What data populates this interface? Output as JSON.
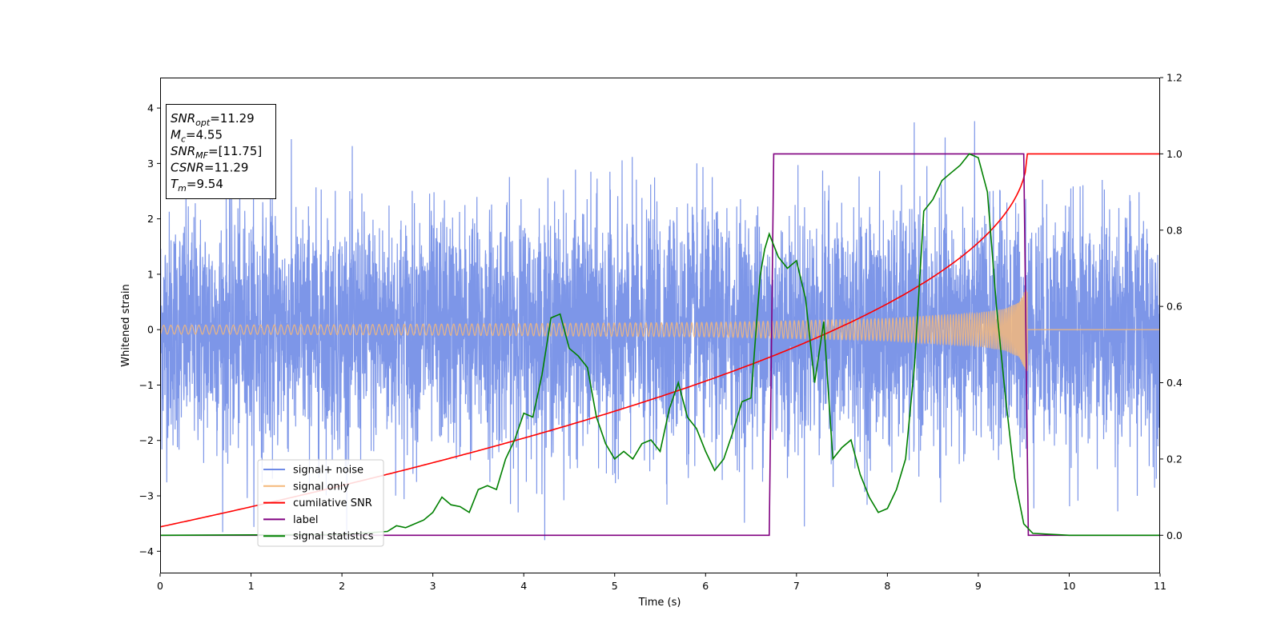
{
  "chart_data": {
    "type": "line",
    "xlabel": "Time (s)",
    "ylabel": "Whitened strain",
    "xlim": [
      0,
      11
    ],
    "ylim": [
      -4.4,
      4.55
    ],
    "y2lim": [
      -0.1,
      1.2
    ],
    "xticks": [
      0,
      1,
      2,
      3,
      4,
      5,
      6,
      7,
      8,
      9,
      10,
      11
    ],
    "yticks": [
      -4,
      -3,
      -2,
      -1,
      0,
      1,
      2,
      3,
      4
    ],
    "y2ticks": [
      "0.0",
      "0.2",
      "0.4",
      "0.6",
      "0.8",
      "1.0",
      "1.2"
    ],
    "grid": false,
    "legend_position": "lower-left",
    "annotation_lines": [
      {
        "base": "SNR",
        "sub": "opt",
        "rest": "=11.29"
      },
      {
        "base": "M",
        "sub": "c",
        "rest": "=4.55"
      },
      {
        "base": "SNR",
        "sub": "MF",
        "rest": "=[11.75]"
      },
      {
        "base": "CSNR",
        "sub": "",
        "rest": "=11.29"
      },
      {
        "base": "T",
        "sub": "m",
        "rest": "=9.54"
      }
    ],
    "series": [
      {
        "name": "signal+ noise",
        "color": "#6f8be6",
        "axis": "left",
        "description_values": {
          "noise_band": [
            -2.0,
            2.0
          ],
          "extreme_range": [
            -3.8,
            4.15
          ]
        }
      },
      {
        "name": "signal only",
        "color": "#f5b97a",
        "axis": "left",
        "envelope": {
          "t": [
            0,
            2,
            4,
            6,
            7,
            8,
            9,
            9.3,
            9.45,
            9.54
          ],
          "amp": [
            0.08,
            0.09,
            0.11,
            0.13,
            0.16,
            0.2,
            0.3,
            0.38,
            0.5,
            0.8
          ]
        },
        "merger_time": 9.54
      },
      {
        "name": "cumilative SNR",
        "color": "#ff0000",
        "axis": "right",
        "t_end": 9.54,
        "final_value": 1.0
      },
      {
        "name": "label",
        "color": "#800080",
        "axis": "right",
        "points": [
          [
            0,
            0
          ],
          [
            6.7,
            0
          ],
          [
            6.75,
            1
          ],
          [
            9.5,
            1
          ],
          [
            9.55,
            0
          ],
          [
            11,
            0
          ]
        ]
      },
      {
        "name": "signal statistics",
        "color": "#008000",
        "axis": "right",
        "points": [
          [
            0,
            0
          ],
          [
            2,
            0.002
          ],
          [
            2.5,
            0.01
          ],
          [
            2.6,
            0.025
          ],
          [
            2.7,
            0.02
          ],
          [
            2.8,
            0.03
          ],
          [
            2.9,
            0.04
          ],
          [
            3.0,
            0.06
          ],
          [
            3.1,
            0.1
          ],
          [
            3.2,
            0.08
          ],
          [
            3.3,
            0.075
          ],
          [
            3.4,
            0.06
          ],
          [
            3.5,
            0.12
          ],
          [
            3.6,
            0.13
          ],
          [
            3.7,
            0.12
          ],
          [
            3.8,
            0.2
          ],
          [
            3.9,
            0.25
          ],
          [
            4.0,
            0.32
          ],
          [
            4.1,
            0.31
          ],
          [
            4.2,
            0.42
          ],
          [
            4.3,
            0.57
          ],
          [
            4.4,
            0.58
          ],
          [
            4.5,
            0.49
          ],
          [
            4.6,
            0.47
          ],
          [
            4.7,
            0.44
          ],
          [
            4.8,
            0.31
          ],
          [
            4.9,
            0.24
          ],
          [
            5.0,
            0.2
          ],
          [
            5.1,
            0.22
          ],
          [
            5.2,
            0.2
          ],
          [
            5.3,
            0.24
          ],
          [
            5.4,
            0.25
          ],
          [
            5.5,
            0.22
          ],
          [
            5.6,
            0.33
          ],
          [
            5.7,
            0.4
          ],
          [
            5.8,
            0.31
          ],
          [
            5.9,
            0.28
          ],
          [
            6.0,
            0.22
          ],
          [
            6.1,
            0.17
          ],
          [
            6.2,
            0.2
          ],
          [
            6.3,
            0.27
          ],
          [
            6.4,
            0.35
          ],
          [
            6.5,
            0.36
          ],
          [
            6.6,
            0.68
          ],
          [
            6.65,
            0.75
          ],
          [
            6.7,
            0.79
          ],
          [
            6.8,
            0.73
          ],
          [
            6.9,
            0.7
          ],
          [
            7.0,
            0.72
          ],
          [
            7.1,
            0.62
          ],
          [
            7.2,
            0.4
          ],
          [
            7.3,
            0.56
          ],
          [
            7.4,
            0.2
          ],
          [
            7.5,
            0.23
          ],
          [
            7.6,
            0.25
          ],
          [
            7.7,
            0.16
          ],
          [
            7.8,
            0.1
          ],
          [
            7.9,
            0.06
          ],
          [
            8.0,
            0.07
          ],
          [
            8.1,
            0.12
          ],
          [
            8.2,
            0.2
          ],
          [
            8.3,
            0.45
          ],
          [
            8.4,
            0.85
          ],
          [
            8.5,
            0.88
          ],
          [
            8.6,
            0.93
          ],
          [
            8.7,
            0.95
          ],
          [
            8.8,
            0.97
          ],
          [
            8.9,
            1.0
          ],
          [
            9.0,
            0.99
          ],
          [
            9.1,
            0.9
          ],
          [
            9.2,
            0.6
          ],
          [
            9.3,
            0.36
          ],
          [
            9.4,
            0.15
          ],
          [
            9.5,
            0.03
          ],
          [
            9.6,
            0.005
          ],
          [
            10,
            0
          ],
          [
            11,
            0
          ]
        ]
      }
    ]
  }
}
